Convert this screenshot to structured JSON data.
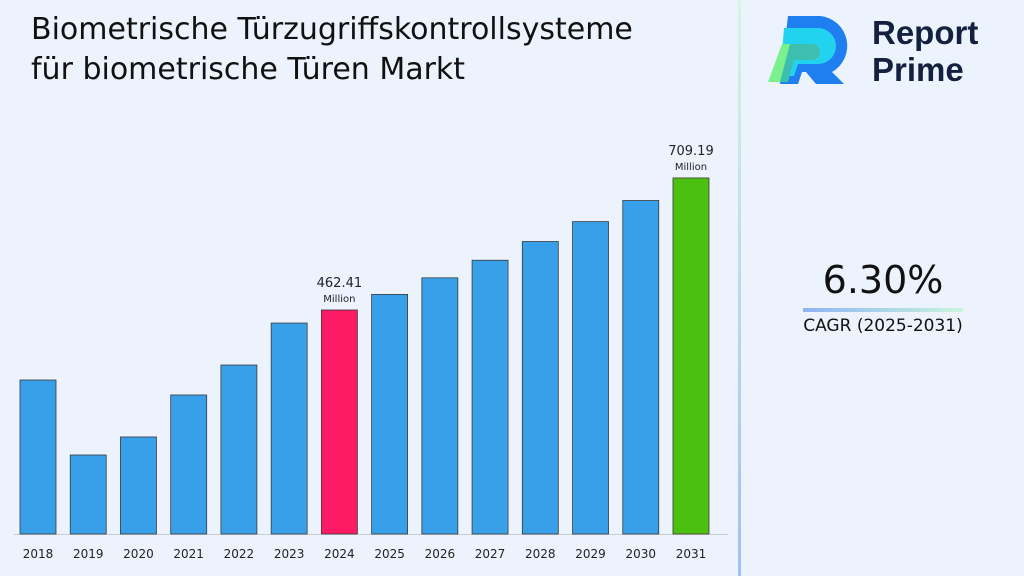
{
  "title": "Biometrische Türzugriffskontrollsysteme für biometrische Türen Markt",
  "brand": {
    "line1": "Report",
    "line2": "Prime"
  },
  "cagr": {
    "value": "6.30%",
    "label": "CAGR (2025-2031)"
  },
  "chart_data": {
    "type": "bar",
    "title": "Biometrische Türzugriffskontrollsysteme für biometrische Türen Markt",
    "categories": [
      "2018",
      "2019",
      "2020",
      "2021",
      "2022",
      "2023",
      "2024",
      "2025",
      "2026",
      "2027",
      "2028",
      "2029",
      "2030",
      "2031"
    ],
    "values": [
      331.5,
      191.3,
      225.0,
      303.5,
      359.5,
      438.0,
      462.41,
      491.5,
      522.5,
      555.4,
      590.4,
      627.6,
      667.1,
      709.19
    ],
    "data_labels": [
      {
        "category": "2024",
        "value": "462.41",
        "unit": "Million"
      },
      {
        "category": "2031",
        "value": "709.19",
        "unit": "Million"
      }
    ],
    "colors": {
      "default": "#38a0e8",
      "2024": "#fc1a64",
      "2031": "#4cc011"
    },
    "xlabel": "",
    "ylabel": "",
    "grid": false,
    "legend": "none"
  }
}
